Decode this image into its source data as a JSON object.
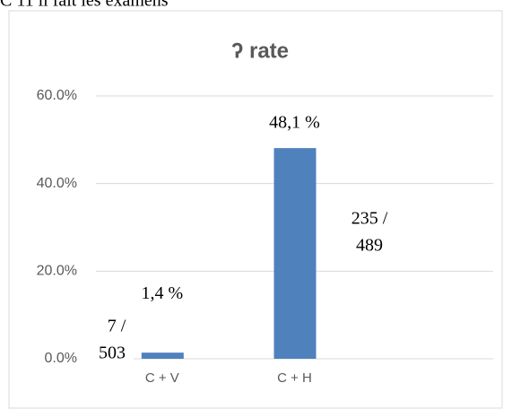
{
  "caption": "C 11     il fait les examens",
  "chart_data": {
    "type": "bar",
    "title": "ʔ rate",
    "categories": [
      "C + V",
      "C + H"
    ],
    "values": [
      1.4,
      48.1
    ],
    "value_labels": [
      "1,4 %",
      "48,1 %"
    ],
    "annotations": [
      [
        "7 /",
        "503"
      ],
      [
        "235 /",
        "489"
      ]
    ],
    "color": "#4f81bd",
    "ylim": [
      0,
      60
    ],
    "yticks": [
      {
        "value": 0,
        "label": "0.0%"
      },
      {
        "value": 20,
        "label": "20.0%"
      },
      {
        "value": 40,
        "label": "40.0%"
      },
      {
        "value": 60,
        "label": "60.0%"
      }
    ],
    "grid": true
  }
}
